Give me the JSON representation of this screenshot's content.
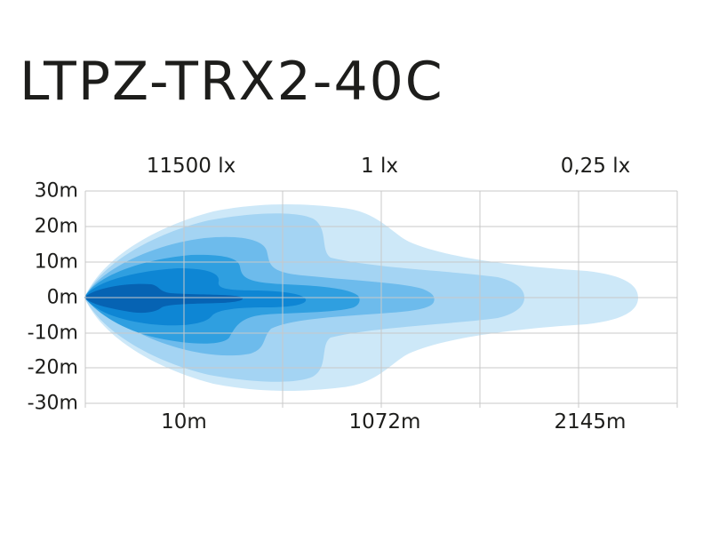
{
  "chart_data": {
    "type": "area",
    "title": "LTPZ-TRX2-40C",
    "lux_labels": [
      "11500 lx",
      "1 lx",
      "0,25 lx"
    ],
    "y_ticks": [
      "30m",
      "20m",
      "10m",
      "0m",
      "-10m",
      "-20m",
      "-30m"
    ],
    "x_ticks": [
      "10m",
      "1072m",
      "2145m"
    ],
    "ylim": [
      -30,
      30
    ],
    "grid": true,
    "zone_colors": [
      "#cde8f8",
      "#a4d4f3",
      "#6dbbec",
      "#2f9fe0",
      "#0e86d4",
      "#0663b3"
    ]
  }
}
